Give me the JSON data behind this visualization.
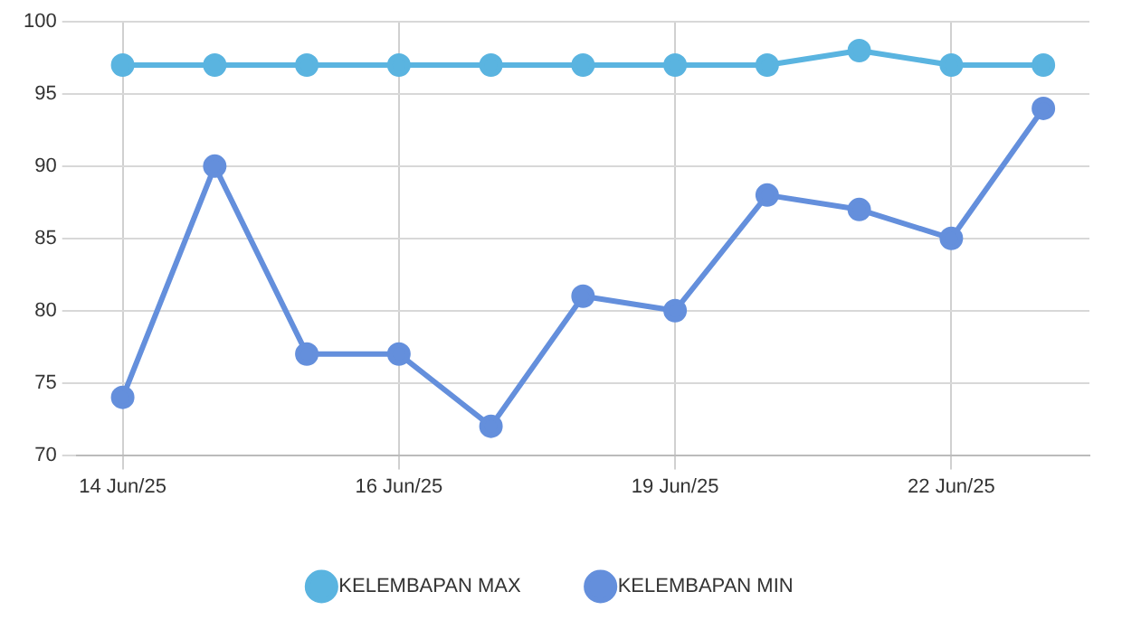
{
  "chart_data": {
    "type": "line",
    "categories": [
      "14 Jun/25",
      null,
      null,
      "16 Jun/25",
      null,
      null,
      "19 Jun/25",
      null,
      null,
      "22 Jun/25",
      null
    ],
    "series": [
      {
        "name": "KELEMBAPAN MAX",
        "color": "#5ab4e0",
        "values": [
          97,
          97,
          97,
          97,
          97,
          97,
          97,
          97,
          98,
          97,
          97
        ]
      },
      {
        "name": "KELEMBAPAN MIN",
        "color": "#648fdc",
        "values": [
          74,
          90,
          77,
          77,
          72,
          81,
          80,
          88,
          87,
          85,
          94
        ]
      }
    ],
    "ylim": [
      70,
      100
    ],
    "yticks": [
      70,
      75,
      80,
      85,
      90,
      95,
      100
    ],
    "grid": true,
    "legend": "bottom",
    "marker": "circle",
    "line_style": "solid"
  }
}
